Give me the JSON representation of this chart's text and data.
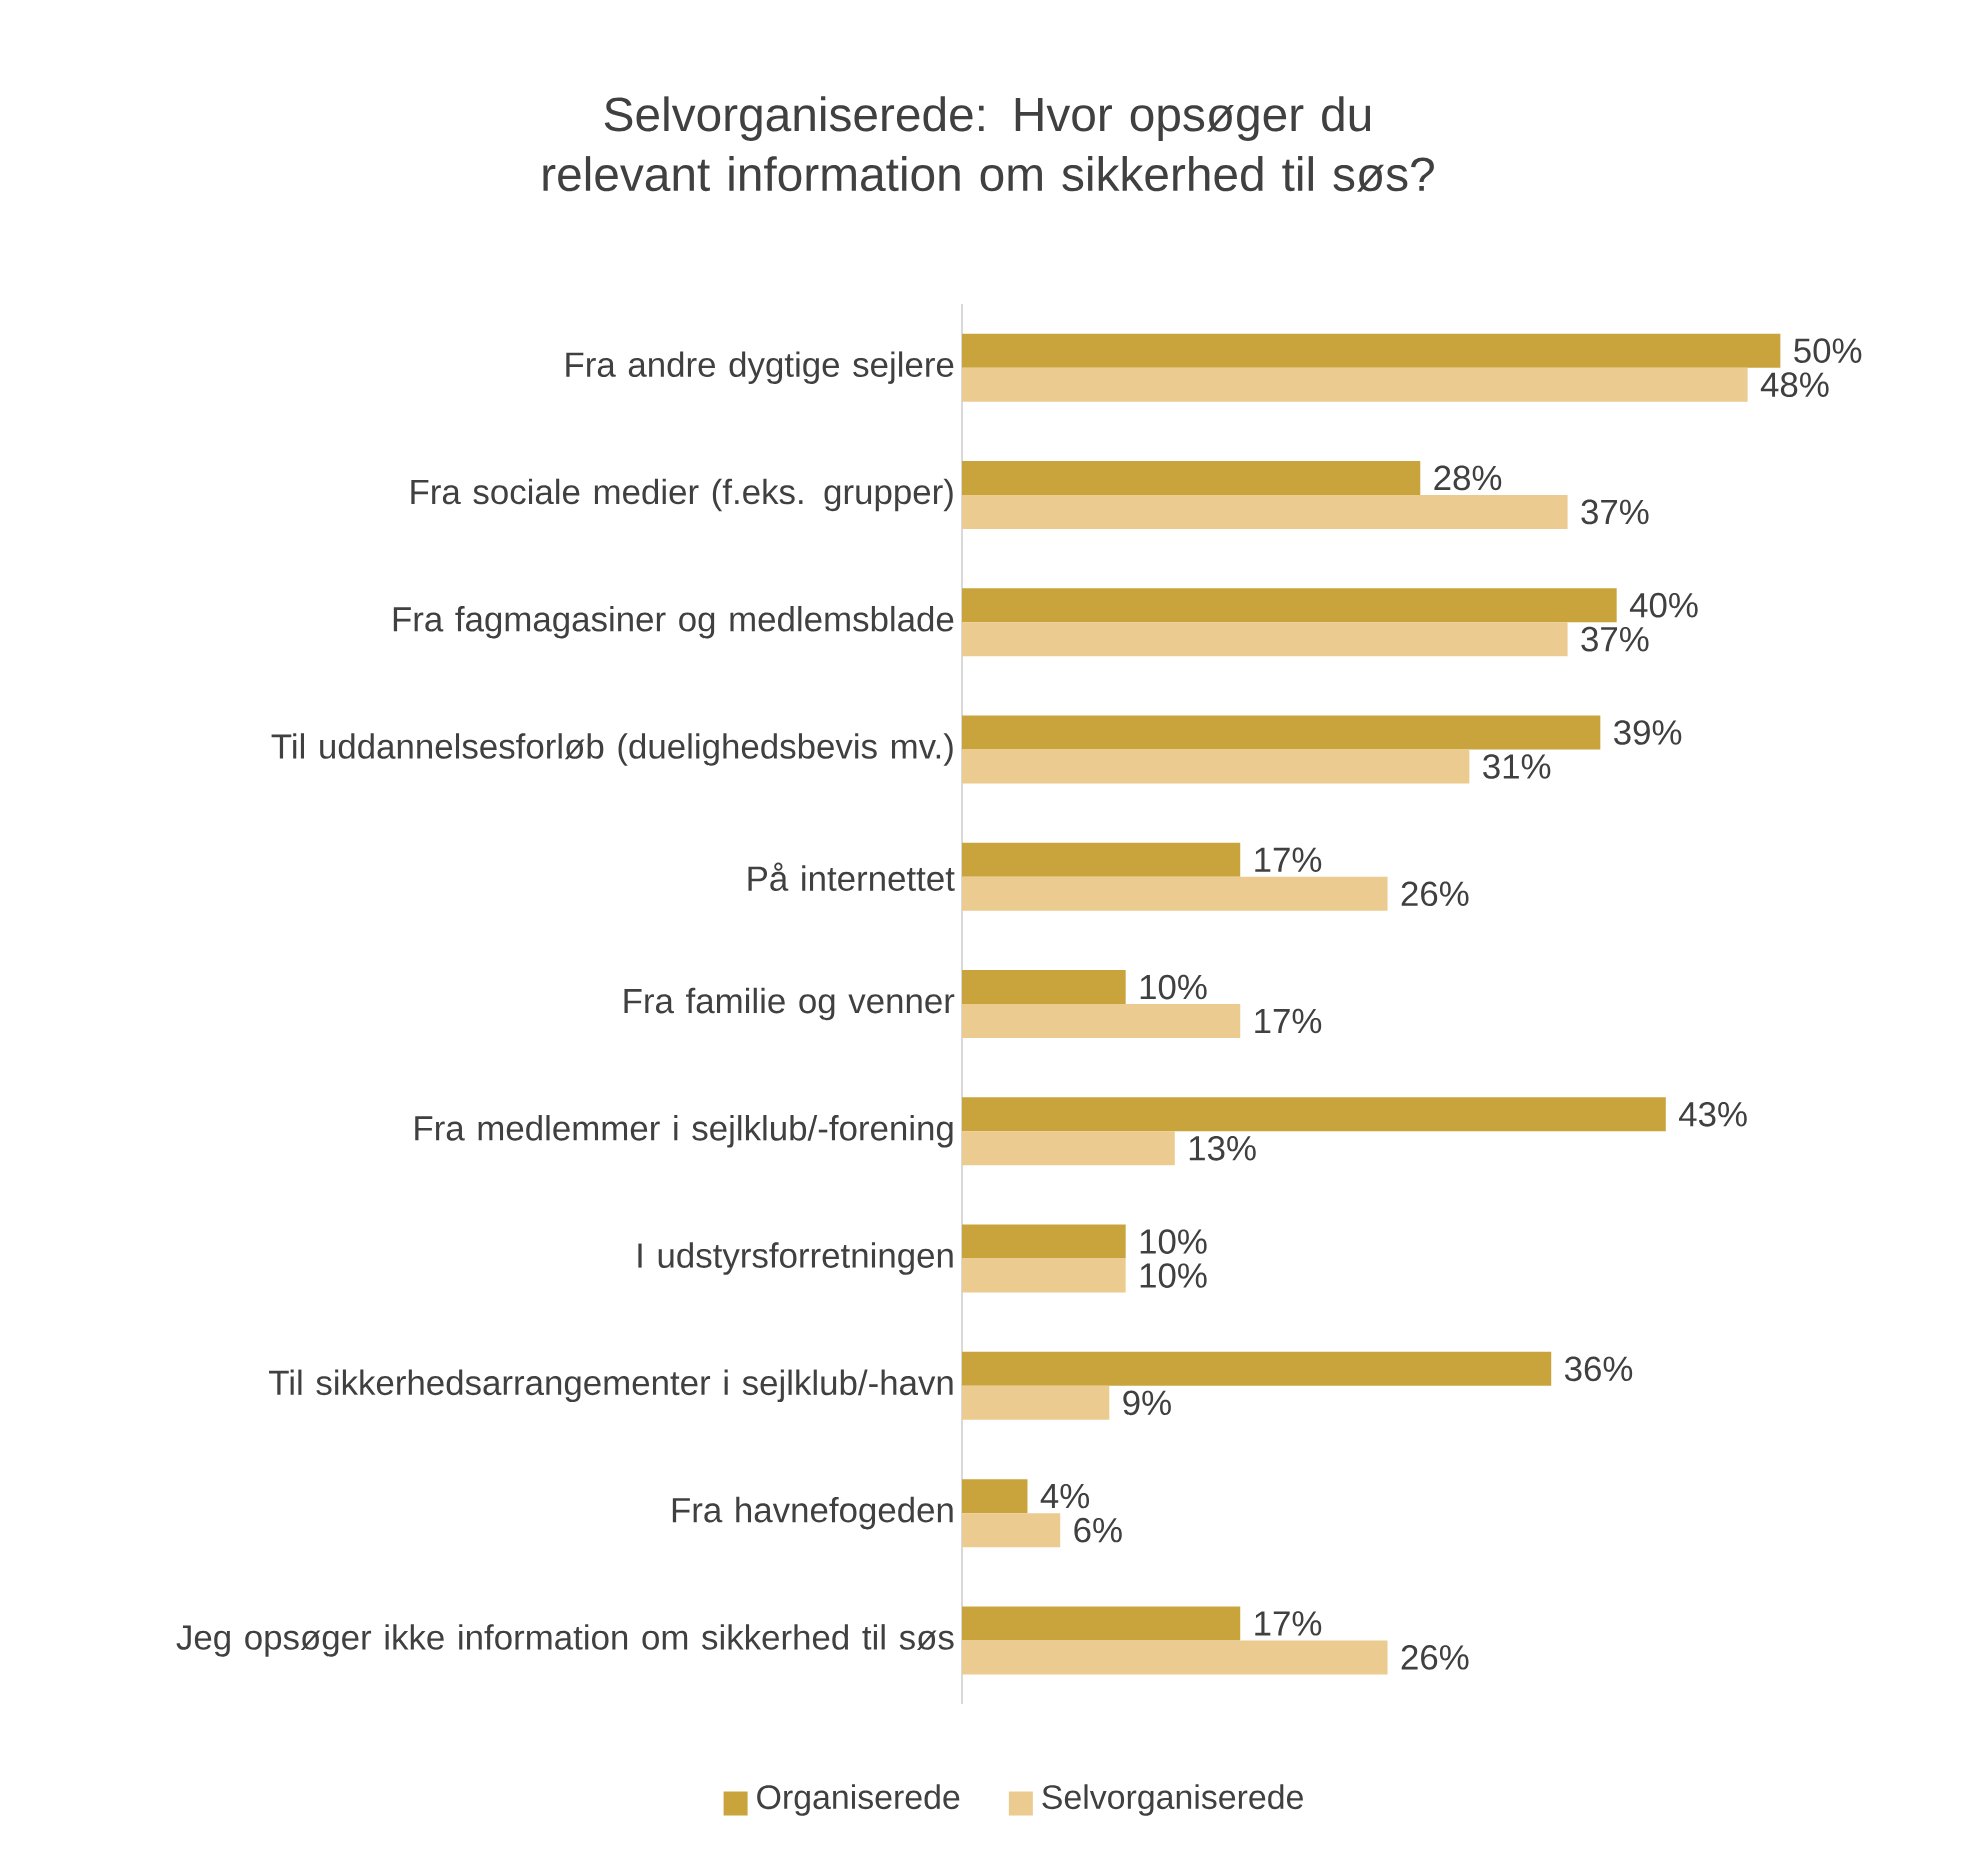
{
  "chart_data": {
    "type": "bar",
    "orientation": "horizontal",
    "title": "Selvorganiserede: Hvor opsøger du relevant information om sikkerhed til søs?",
    "categories": [
      "Fra andre dygtige sejlere",
      "Fra sociale medier (f.eks. grupper)",
      "Fra fagmagasiner og medlemsblade",
      "Til uddannelsesforløb (duelighedsbevis mv.)",
      "På internettet",
      "Fra familie og venner",
      "Fra medlemmer i sejlklub/-forening",
      "I udstyrsforretningen",
      "Til sikkerhedsarrangementer i sejlklub/-havn",
      "Fra havnefogeden",
      "Jeg opsøger ikke information om sikkerhed til søs"
    ],
    "series": [
      {
        "name": "Organiserede",
        "color": "#c9a33c",
        "values": [
          50,
          28,
          40,
          39,
          17,
          10,
          43,
          10,
          36,
          4,
          17
        ],
        "value_labels": [
          "50%",
          "28%",
          "40%",
          "39%",
          "17%",
          "10%",
          "43%",
          "10%",
          "36%",
          "4%",
          "17%"
        ]
      },
      {
        "name": "Selvorganiserede",
        "color": "#ebcb90",
        "values": [
          48,
          37,
          37,
          31,
          26,
          17,
          13,
          10,
          9,
          6,
          26
        ],
        "value_labels": [
          "48%",
          "37%",
          "37%",
          "31%",
          "26%",
          "17%",
          "13%",
          "10%",
          "9%",
          "6%",
          "26%"
        ]
      }
    ],
    "legend": "bottom"
  }
}
